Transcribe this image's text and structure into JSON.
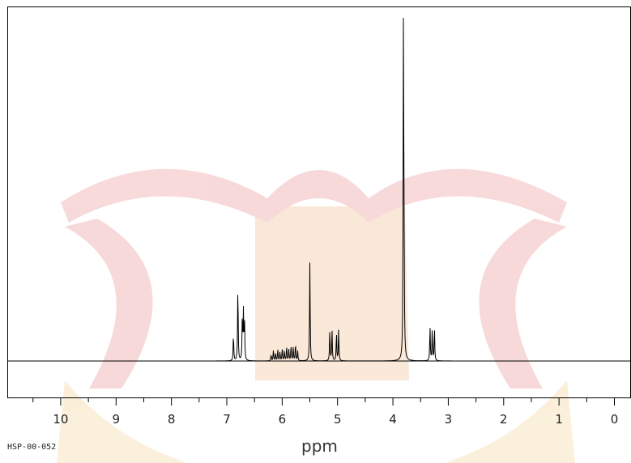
{
  "sample_id": "HSP-00-052",
  "chart_data": {
    "type": "line",
    "title": "",
    "xlabel": "ppm",
    "ylabel": "",
    "xlim": [
      10.95,
      -0.3
    ],
    "x_reversed": true,
    "x_ticks": [
      10,
      9,
      8,
      7,
      6,
      5,
      4,
      3,
      2,
      1,
      0
    ],
    "x_tick_labels": [
      "10",
      "9",
      "8",
      "7",
      "6",
      "5",
      "4",
      "3",
      "2",
      "1",
      "0"
    ],
    "grid": false,
    "legend": "none",
    "line_color": "#000000",
    "peaks": [
      {
        "ppm": 6.88,
        "height": 0.084
      },
      {
        "ppm": 6.8,
        "height": 0.239
      },
      {
        "ppm": 6.72,
        "height": 0.131
      },
      {
        "ppm": 6.7,
        "height": 0.148
      },
      {
        "ppm": 6.68,
        "height": 0.122
      },
      {
        "ppm": 6.2,
        "height": 0.02
      },
      {
        "ppm": 6.16,
        "height": 0.032
      },
      {
        "ppm": 6.12,
        "height": 0.025
      },
      {
        "ppm": 6.08,
        "height": 0.035
      },
      {
        "ppm": 6.04,
        "height": 0.028
      },
      {
        "ppm": 6.0,
        "height": 0.038
      },
      {
        "ppm": 5.96,
        "height": 0.03
      },
      {
        "ppm": 5.92,
        "height": 0.045
      },
      {
        "ppm": 5.88,
        "height": 0.035
      },
      {
        "ppm": 5.84,
        "height": 0.05
      },
      {
        "ppm": 5.8,
        "height": 0.04
      },
      {
        "ppm": 5.76,
        "height": 0.055
      },
      {
        "ppm": 5.72,
        "height": 0.03
      },
      {
        "ppm": 5.5,
        "height": 0.306
      },
      {
        "ppm": 5.14,
        "height": 0.098
      },
      {
        "ppm": 5.1,
        "height": 0.098
      },
      {
        "ppm": 5.02,
        "height": 0.087
      },
      {
        "ppm": 4.98,
        "height": 0.098
      },
      {
        "ppm": 3.81,
        "height": 1.0
      },
      {
        "ppm": 3.8,
        "height": 0.341
      },
      {
        "ppm": 3.33,
        "height": 0.109
      },
      {
        "ppm": 3.29,
        "height": 0.095
      },
      {
        "ppm": 3.25,
        "height": 0.106
      }
    ]
  }
}
